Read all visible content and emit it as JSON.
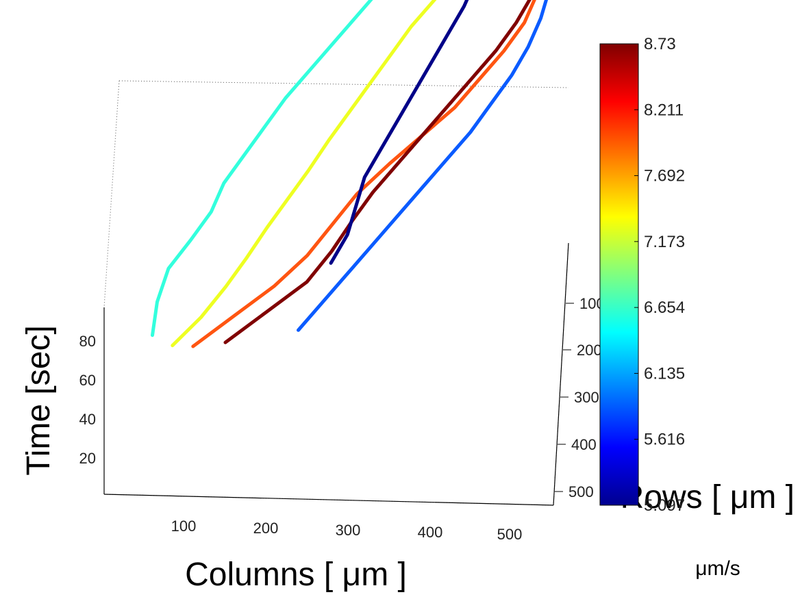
{
  "chart_data": {
    "type": "line3d",
    "xlabel": "Columns [ μm ]",
    "ylabel": "Rows [ μm ]",
    "zlabel": "Time [sec]",
    "x_ticks": [
      "100",
      "200",
      "300",
      "400",
      "500"
    ],
    "y_ticks": [
      "100",
      "200",
      "300",
      "400",
      "500"
    ],
    "z_ticks": [
      "20",
      "40",
      "60",
      "80"
    ],
    "xlim": [
      0,
      560
    ],
    "ylim": [
      0,
      560
    ],
    "zlim": [
      0,
      160
    ],
    "grid": true,
    "colormap": "jet",
    "colorbar": {
      "unit_label": "μm/s",
      "ticks": [
        "5.097",
        "5.616",
        "6.135",
        "6.654",
        "7.173",
        "7.692",
        "8.211",
        "8.73"
      ],
      "range": [
        5.097,
        8.73
      ]
    },
    "series": [
      {
        "speed": 6.4,
        "color": "#33ffdd",
        "x": [
          50,
          55,
          68,
          95,
          120,
          135,
          160,
          185,
          210,
          240,
          270,
          300,
          330,
          360,
          395
        ],
        "y": [
          300,
          330,
          360,
          380,
          400,
          420,
          440,
          460,
          480,
          500,
          520,
          540,
          560,
          580,
          600
        ],
        "z": [
          10,
          20,
          30,
          40,
          50,
          60,
          70,
          80,
          90,
          100,
          110,
          120,
          130,
          140,
          150
        ]
      },
      {
        "speed": 7.35,
        "color": "#eeff22",
        "x": [
          75,
          110,
          140,
          165,
          190,
          215,
          240,
          265,
          290,
          315,
          340,
          365,
          395,
          420,
          440
        ],
        "y": [
          300,
          320,
          345,
          365,
          390,
          410,
          430,
          455,
          475,
          495,
          515,
          535,
          555,
          575,
          595
        ],
        "z": [
          5,
          15,
          25,
          35,
          45,
          55,
          65,
          75,
          85,
          95,
          105,
          115,
          125,
          135,
          145
        ]
      },
      {
        "speed": 8.1,
        "color": "#ff5511",
        "x": [
          100,
          150,
          200,
          240,
          270,
          300,
          340,
          380,
          420,
          450,
          480,
          505,
          520,
          525,
          530
        ],
        "y": [
          320,
          345,
          370,
          395,
          420,
          445,
          470,
          490,
          510,
          530,
          550,
          570,
          590,
          610,
          630
        ],
        "z": [
          0,
          10,
          20,
          30,
          40,
          50,
          60,
          70,
          80,
          90,
          100,
          110,
          120,
          130,
          140
        ]
      },
      {
        "speed": 8.6,
        "color": "#800000",
        "x": [
          140,
          190,
          240,
          270,
          295,
          320,
          350,
          380,
          410,
          440,
          470,
          495,
          515,
          530,
          545
        ],
        "y": [
          330,
          355,
          380,
          405,
          430,
          450,
          470,
          490,
          510,
          530,
          550,
          570,
          590,
          610,
          630
        ],
        "z": [
          0,
          10,
          20,
          30,
          40,
          50,
          60,
          70,
          80,
          90,
          100,
          110,
          120,
          130,
          140
        ]
      },
      {
        "speed": 5.3,
        "color": "#000088",
        "x": [
          270,
          290,
          300,
          310,
          330,
          350,
          370,
          390,
          410,
          430,
          445,
          460,
          470,
          480,
          490
        ],
        "y": [
          380,
          400,
          420,
          440,
          460,
          480,
          500,
          520,
          540,
          560,
          580,
          600,
          620,
          640,
          660
        ],
        "z": [
          30,
          40,
          50,
          60,
          70,
          80,
          90,
          100,
          110,
          120,
          130,
          140,
          150,
          155,
          160
        ]
      },
      {
        "speed": 6.0,
        "color": "#0a5bff",
        "x": [
          230,
          260,
          290,
          320,
          350,
          380,
          410,
          440,
          465,
          490,
          510,
          525,
          535,
          540,
          545
        ],
        "y": [
          360,
          380,
          400,
          420,
          440,
          460,
          480,
          500,
          520,
          540,
          560,
          580,
          600,
          620,
          640
        ],
        "z": [
          0,
          10,
          20,
          30,
          40,
          50,
          60,
          70,
          80,
          90,
          100,
          110,
          120,
          130,
          140
        ]
      }
    ]
  }
}
